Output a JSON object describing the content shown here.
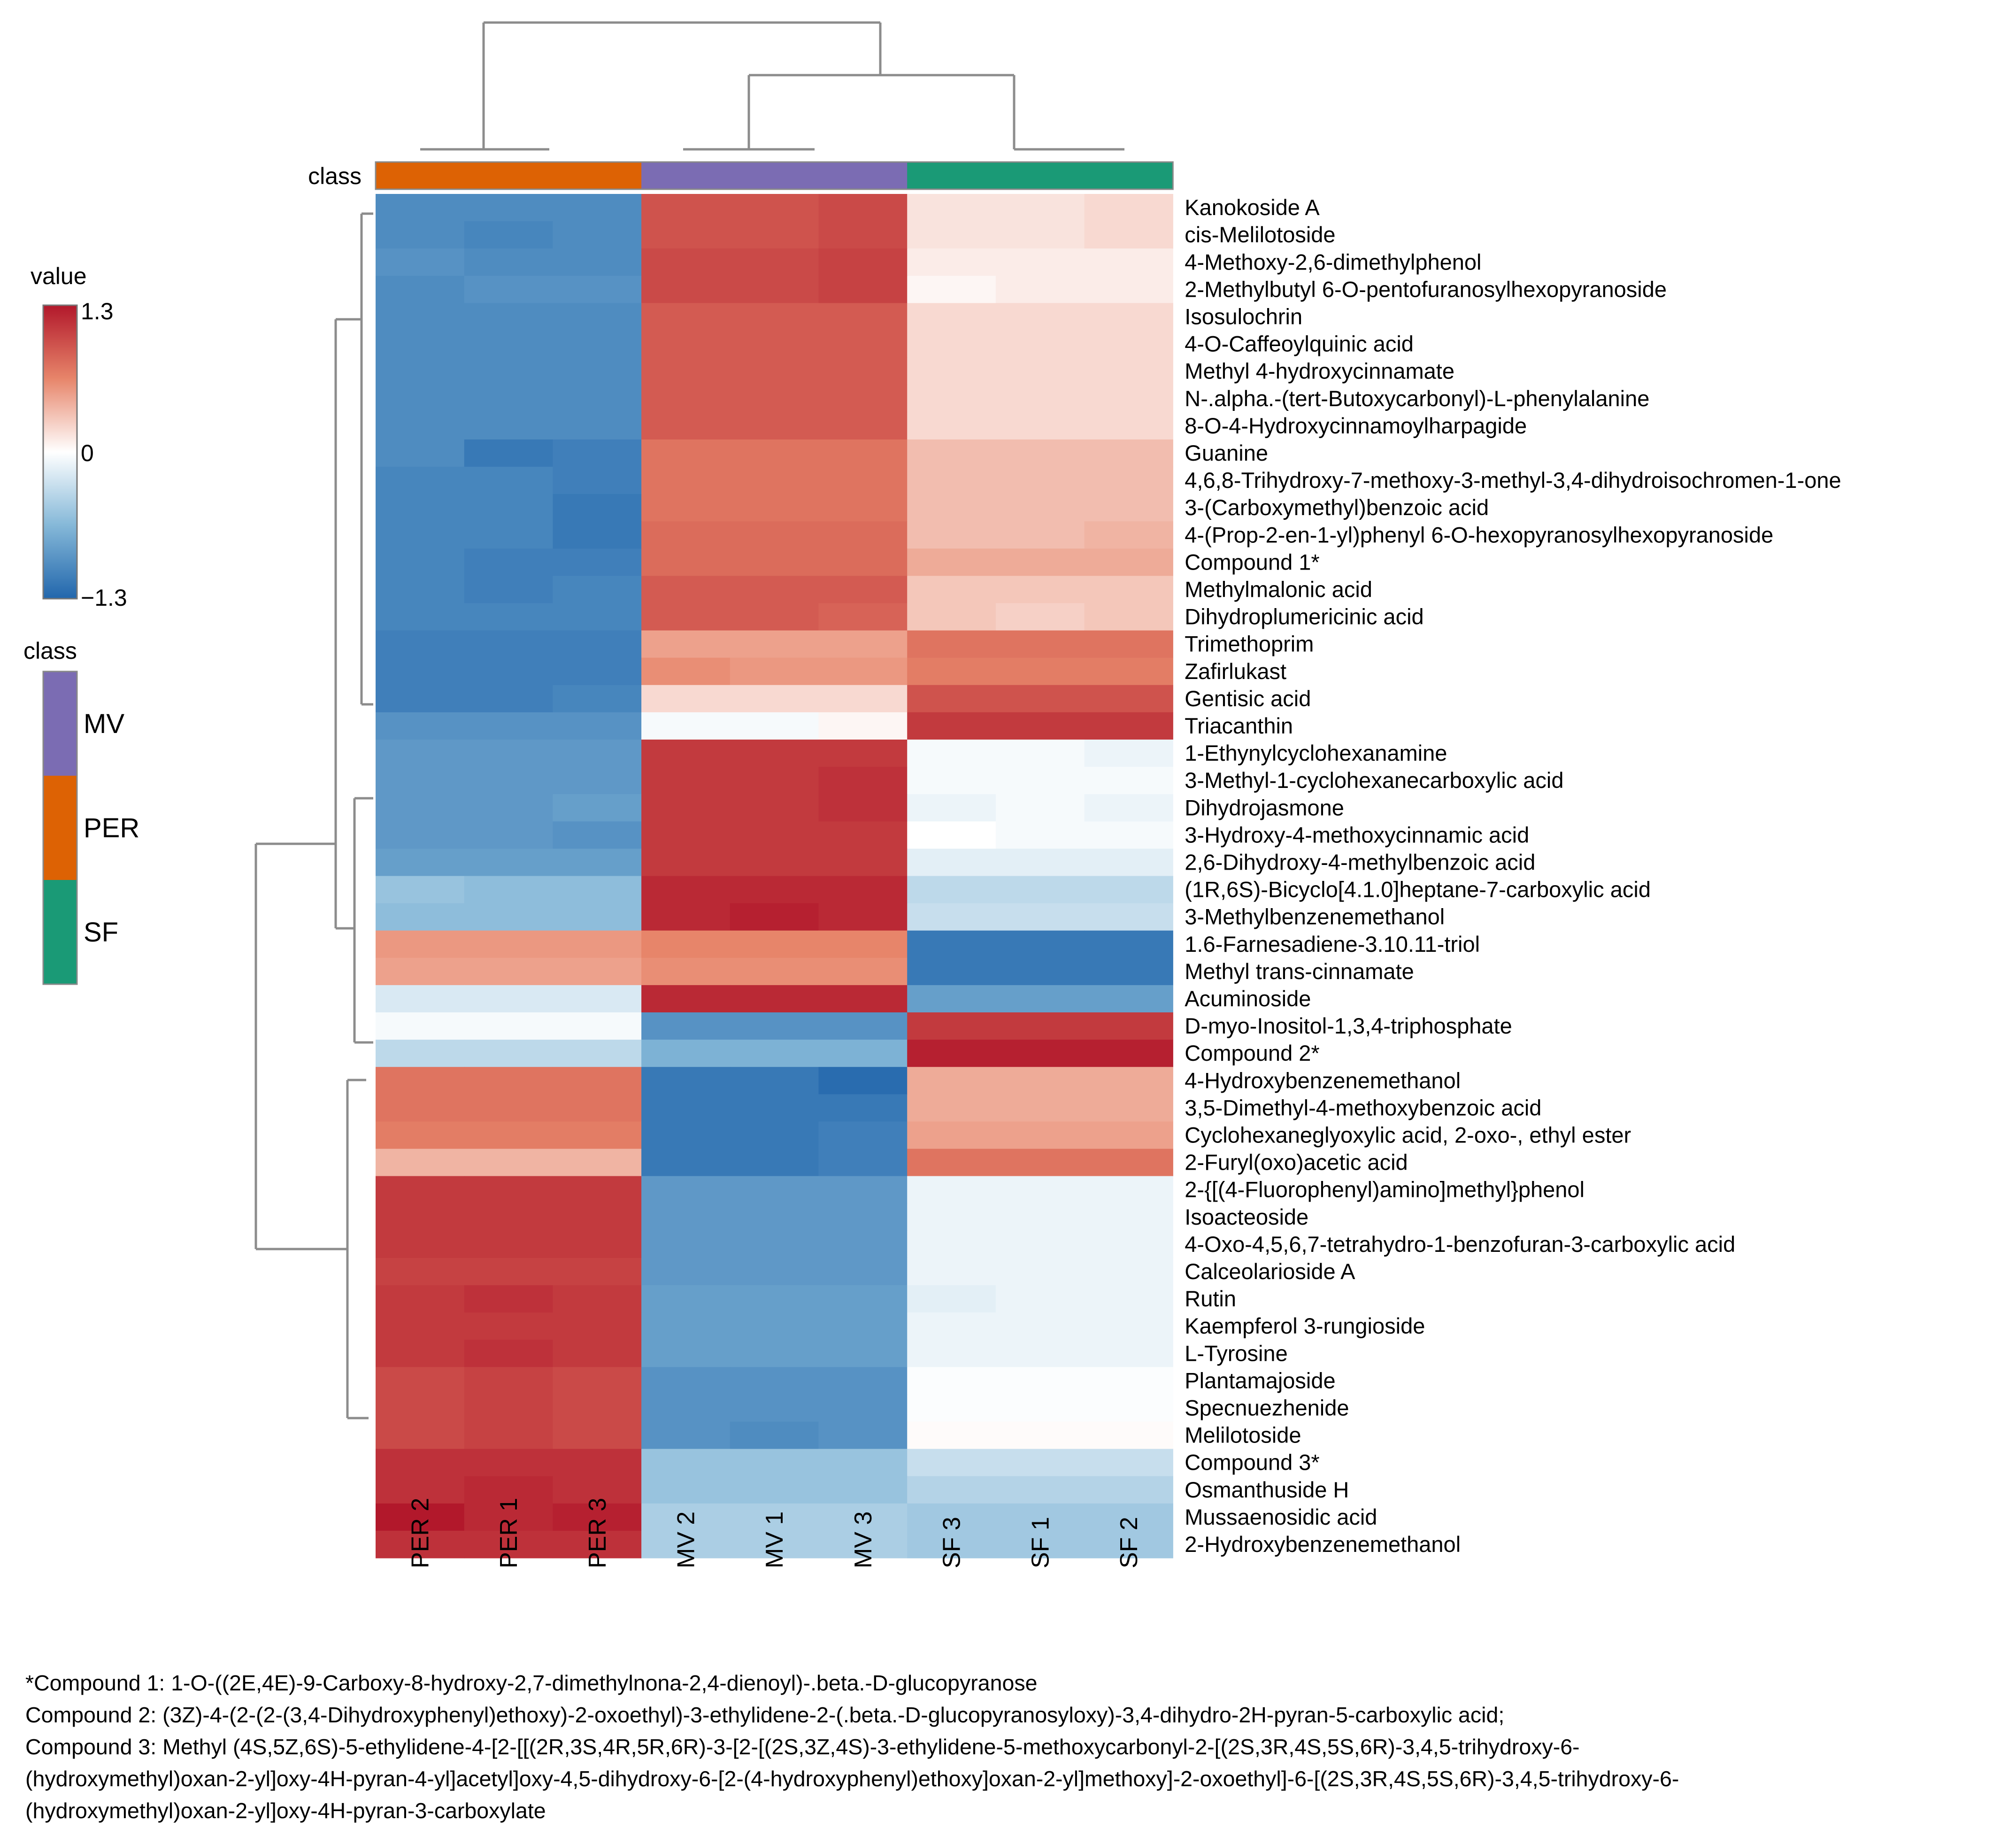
{
  "chart_data": {
    "type": "heatmap",
    "title": "",
    "columns": [
      "PER 2",
      "PER 1",
      "PER 3",
      "MV 2",
      "MV 1",
      "MV 3",
      "SF 3",
      "SF 1",
      "SF 2"
    ],
    "column_classes": [
      "PER",
      "PER",
      "PER",
      "MV",
      "MV",
      "MV",
      "SF",
      "SF",
      "SF"
    ],
    "rows": [
      "Kanokoside A",
      "cis-Melilotoside",
      "4-Methoxy-2,6-dimethylphenol",
      "2-Methylbutyl 6-O-pentofuranosylhexopyranoside",
      "Isosulochrin",
      "4-O-Caffeoylquinic acid",
      "Methyl 4-hydroxycinnamate",
      "N-.alpha.-(tert-Butoxycarbonyl)-L-phenylalanine",
      "8-O-4-Hydroxycinnamoylharpagide",
      "Guanine",
      "4,6,8-Trihydroxy-7-methoxy-3-methyl-3,4-dihydroisochromen-1-one",
      "3-(Carboxymethyl)benzoic acid",
      "4-(Prop-2-en-1-yl)phenyl 6-O-hexopyranosylhexopyranoside",
      "Compound 1*",
      "Methylmalonic acid",
      "Dihydroplumericinic acid",
      "Trimethoprim",
      "Zafirlukast",
      "Gentisic acid",
      "Triacanthin",
      "1-Ethynylcyclohexanamine",
      "3-Methyl-1-cyclohexanecarboxylic acid",
      "Dihydrojasmone",
      "3-Hydroxy-4-methoxycinnamic acid",
      "2,6-Dihydroxy-4-methylbenzoic acid",
      "(1R,6S)-Bicyclo[4.1.0]heptane-7-carboxylic acid",
      "3-Methylbenzenemethanol",
      "1.6-Farnesadiene-3.10.11-triol",
      "Methyl trans-cinnamate",
      "Acuminoside",
      "D-myo-Inositol-1,3,4-triphosphate",
      "Compound 2*",
      "4-Hydroxybenzenemethanol",
      "3,5-Dimethyl-4-methoxybenzoic acid",
      "Cyclohexaneglyoxylic acid, 2-oxo-, ethyl ester",
      "2-Furyl(oxo)acetic acid",
      "2-{[(4-Fluorophenyl)amino]methyl}phenol",
      "Isoacteoside",
      "4-Oxo-4,5,6,7-tetrahydro-1-benzofuran-3-carboxylic acid",
      "Calceolarioside A",
      "Rutin",
      "Kaempferol 3-rungioside",
      "L-Tyrosine",
      "Plantamajoside",
      "Specnuezhenide",
      "Melilotoside",
      "Compound 3*",
      "Osmanthuside H",
      "Mussaenosidic acid",
      "2-Hydroxybenzenemethanol"
    ],
    "values": [
      [
        -1.0,
        -1.0,
        -1.0,
        0.95,
        0.95,
        1.0,
        0.15,
        0.15,
        0.2
      ],
      [
        -1.0,
        -1.05,
        -1.0,
        0.95,
        0.95,
        1.0,
        0.15,
        0.15,
        0.2
      ],
      [
        -0.95,
        -1.0,
        -1.0,
        1.0,
        1.0,
        1.05,
        0.1,
        0.1,
        0.1
      ],
      [
        -1.0,
        -0.95,
        -0.95,
        1.0,
        1.0,
        1.05,
        0.05,
        0.1,
        0.1
      ],
      [
        -1.0,
        -1.0,
        -1.0,
        0.9,
        0.9,
        0.9,
        0.2,
        0.2,
        0.2
      ],
      [
        -1.0,
        -1.0,
        -1.0,
        0.9,
        0.9,
        0.9,
        0.2,
        0.2,
        0.2
      ],
      [
        -1.0,
        -1.0,
        -1.0,
        0.9,
        0.9,
        0.9,
        0.2,
        0.2,
        0.2
      ],
      [
        -1.0,
        -1.0,
        -1.0,
        0.9,
        0.9,
        0.9,
        0.2,
        0.2,
        0.2
      ],
      [
        -1.0,
        -1.0,
        -1.0,
        0.9,
        0.9,
        0.9,
        0.2,
        0.2,
        0.2
      ],
      [
        -1.0,
        -1.15,
        -1.1,
        0.75,
        0.75,
        0.75,
        0.35,
        0.35,
        0.35
      ],
      [
        -1.05,
        -1.05,
        -1.1,
        0.75,
        0.75,
        0.75,
        0.35,
        0.35,
        0.35
      ],
      [
        -1.05,
        -1.05,
        -1.15,
        0.75,
        0.75,
        0.75,
        0.35,
        0.35,
        0.35
      ],
      [
        -1.05,
        -1.05,
        -1.15,
        0.8,
        0.8,
        0.8,
        0.35,
        0.35,
        0.4
      ],
      [
        -1.05,
        -1.1,
        -1.1,
        0.8,
        0.8,
        0.8,
        0.45,
        0.45,
        0.45
      ],
      [
        -1.05,
        -1.1,
        -1.05,
        0.9,
        0.9,
        0.9,
        0.3,
        0.3,
        0.3
      ],
      [
        -1.05,
        -1.05,
        -1.05,
        0.9,
        0.9,
        0.85,
        0.3,
        0.25,
        0.3
      ],
      [
        -1.1,
        -1.1,
        -1.1,
        0.5,
        0.5,
        0.5,
        0.75,
        0.75,
        0.75
      ],
      [
        -1.1,
        -1.1,
        -1.1,
        0.6,
        0.55,
        0.55,
        0.7,
        0.7,
        0.7
      ],
      [
        -1.1,
        -1.1,
        -1.05,
        0.2,
        0.2,
        0.2,
        0.95,
        0.95,
        0.95
      ],
      [
        -0.95,
        -0.95,
        -0.95,
        -0.05,
        -0.05,
        0.05,
        1.1,
        1.1,
        1.1
      ],
      [
        -0.9,
        -0.9,
        -0.9,
        1.1,
        1.1,
        1.1,
        -0.05,
        -0.05,
        -0.1
      ],
      [
        -0.9,
        -0.9,
        -0.9,
        1.1,
        1.1,
        1.15,
        -0.05,
        -0.05,
        -0.05
      ],
      [
        -0.9,
        -0.9,
        -0.85,
        1.1,
        1.1,
        1.15,
        -0.1,
        -0.05,
        -0.1
      ],
      [
        -0.9,
        -0.9,
        -0.95,
        1.1,
        1.1,
        1.1,
        0.0,
        -0.05,
        -0.05
      ],
      [
        -0.85,
        -0.85,
        -0.85,
        1.1,
        1.1,
        1.1,
        -0.15,
        -0.15,
        -0.15
      ],
      [
        -0.55,
        -0.6,
        -0.6,
        1.2,
        1.2,
        1.2,
        -0.35,
        -0.35,
        -0.35
      ],
      [
        -0.6,
        -0.6,
        -0.6,
        1.2,
        1.25,
        1.2,
        -0.3,
        -0.3,
        -0.3
      ],
      [
        0.55,
        0.55,
        0.55,
        0.65,
        0.65,
        0.65,
        -1.15,
        -1.15,
        -1.15
      ],
      [
        0.5,
        0.5,
        0.5,
        0.6,
        0.6,
        0.6,
        -1.15,
        -1.15,
        -1.15
      ],
      [
        -0.2,
        -0.2,
        -0.2,
        1.2,
        1.2,
        1.2,
        -0.85,
        -0.85,
        -0.85
      ],
      [
        -0.05,
        -0.05,
        -0.05,
        -0.95,
        -0.95,
        -0.95,
        1.1,
        1.1,
        1.1
      ],
      [
        -0.35,
        -0.35,
        -0.35,
        -0.7,
        -0.7,
        -0.7,
        1.25,
        1.25,
        1.25
      ],
      [
        0.75,
        0.75,
        0.75,
        -1.15,
        -1.15,
        -1.25,
        0.45,
        0.45,
        0.45
      ],
      [
        0.75,
        0.75,
        0.75,
        -1.15,
        -1.15,
        -1.15,
        0.45,
        0.45,
        0.45
      ],
      [
        0.7,
        0.7,
        0.7,
        -1.15,
        -1.15,
        -1.1,
        0.5,
        0.5,
        0.5
      ],
      [
        0.4,
        0.4,
        0.4,
        -1.15,
        -1.15,
        -1.1,
        0.75,
        0.75,
        0.75
      ],
      [
        1.1,
        1.1,
        1.1,
        -0.9,
        -0.9,
        -0.9,
        -0.1,
        -0.1,
        -0.1
      ],
      [
        1.1,
        1.1,
        1.1,
        -0.9,
        -0.9,
        -0.9,
        -0.1,
        -0.1,
        -0.1
      ],
      [
        1.1,
        1.1,
        1.1,
        -0.9,
        -0.9,
        -0.9,
        -0.1,
        -0.1,
        -0.1
      ],
      [
        1.05,
        1.05,
        1.05,
        -0.9,
        -0.9,
        -0.9,
        -0.1,
        -0.1,
        -0.1
      ],
      [
        1.1,
        1.15,
        1.1,
        -0.85,
        -0.85,
        -0.85,
        -0.15,
        -0.1,
        -0.1
      ],
      [
        1.1,
        1.1,
        1.1,
        -0.85,
        -0.85,
        -0.85,
        -0.1,
        -0.1,
        -0.1
      ],
      [
        1.1,
        1.15,
        1.1,
        -0.85,
        -0.85,
        -0.85,
        -0.1,
        -0.1,
        -0.1
      ],
      [
        1.0,
        1.05,
        1.0,
        -0.95,
        -0.95,
        -0.95,
        -0.02,
        -0.02,
        -0.02
      ],
      [
        1.0,
        1.05,
        1.0,
        -0.95,
        -0.95,
        -0.95,
        -0.02,
        -0.02,
        -0.02
      ],
      [
        1.0,
        1.05,
        1.0,
        -0.95,
        -1.0,
        -0.95,
        0.02,
        0.02,
        0.02
      ],
      [
        1.15,
        1.15,
        1.15,
        -0.55,
        -0.55,
        -0.55,
        -0.3,
        -0.3,
        -0.3
      ],
      [
        1.15,
        1.2,
        1.15,
        -0.55,
        -0.55,
        -0.55,
        -0.4,
        -0.4,
        -0.4
      ],
      [
        1.3,
        1.2,
        1.25,
        -0.45,
        -0.45,
        -0.45,
        -0.5,
        -0.5,
        -0.5
      ],
      [
        1.15,
        1.15,
        1.15,
        -0.45,
        -0.45,
        -0.45,
        -0.5,
        -0.5,
        -0.5
      ]
    ],
    "color_scale": {
      "title": "value",
      "min": -1.3,
      "max": 1.3,
      "ticks": [
        "1.3",
        "0",
        "−1.3"
      ],
      "low_color": "#2166AC",
      "mid_color": "#FFFFFF",
      "high_color": "#B2182B"
    },
    "class_annotation": {
      "label": "class",
      "legend_title": "class",
      "classes": [
        {
          "name": "MV",
          "color": "#7B6CB3"
        },
        {
          "name": "PER",
          "color": "#DD6204"
        },
        {
          "name": "SF",
          "color": "#1A9A76"
        }
      ]
    }
  },
  "footnotes": [
    "*Compound 1: 1-O-((2E,4E)-9-Carboxy-8-hydroxy-2,7-dimethylnona-2,4-dienoyl)-.beta.-D-glucopyranose",
    "Compound 2: (3Z)-4-(2-(2-(3,4-Dihydroxyphenyl)ethoxy)-2-oxoethyl)-3-ethylidene-2-(.beta.-D-glucopyranosyloxy)-3,4-dihydro-2H-pyran-5-carboxylic acid;",
    "Compound 3: Methyl (4S,5Z,6S)-5-ethylidene-4-[2-[[(2R,3S,4R,5R,6R)-3-[2-[(2S,3Z,4S)-3-ethylidene-5-methoxycarbonyl-2-[(2S,3R,4S,5S,6R)-3,4,5-trihydroxy-6-",
    "(hydroxymethyl)oxan-2-yl]oxy-4H-pyran-4-yl]acetyl]oxy-4,5-dihydroxy-6-[2-(4-hydroxyphenyl)ethoxy]oxan-2-yl]methoxy]-2-oxoethyl]-6-[(2S,3R,4S,5S,6R)-3,4,5-trihydroxy-6-",
    "(hydroxymethyl)oxan-2-yl]oxy-4H-pyran-3-carboxylate"
  ]
}
